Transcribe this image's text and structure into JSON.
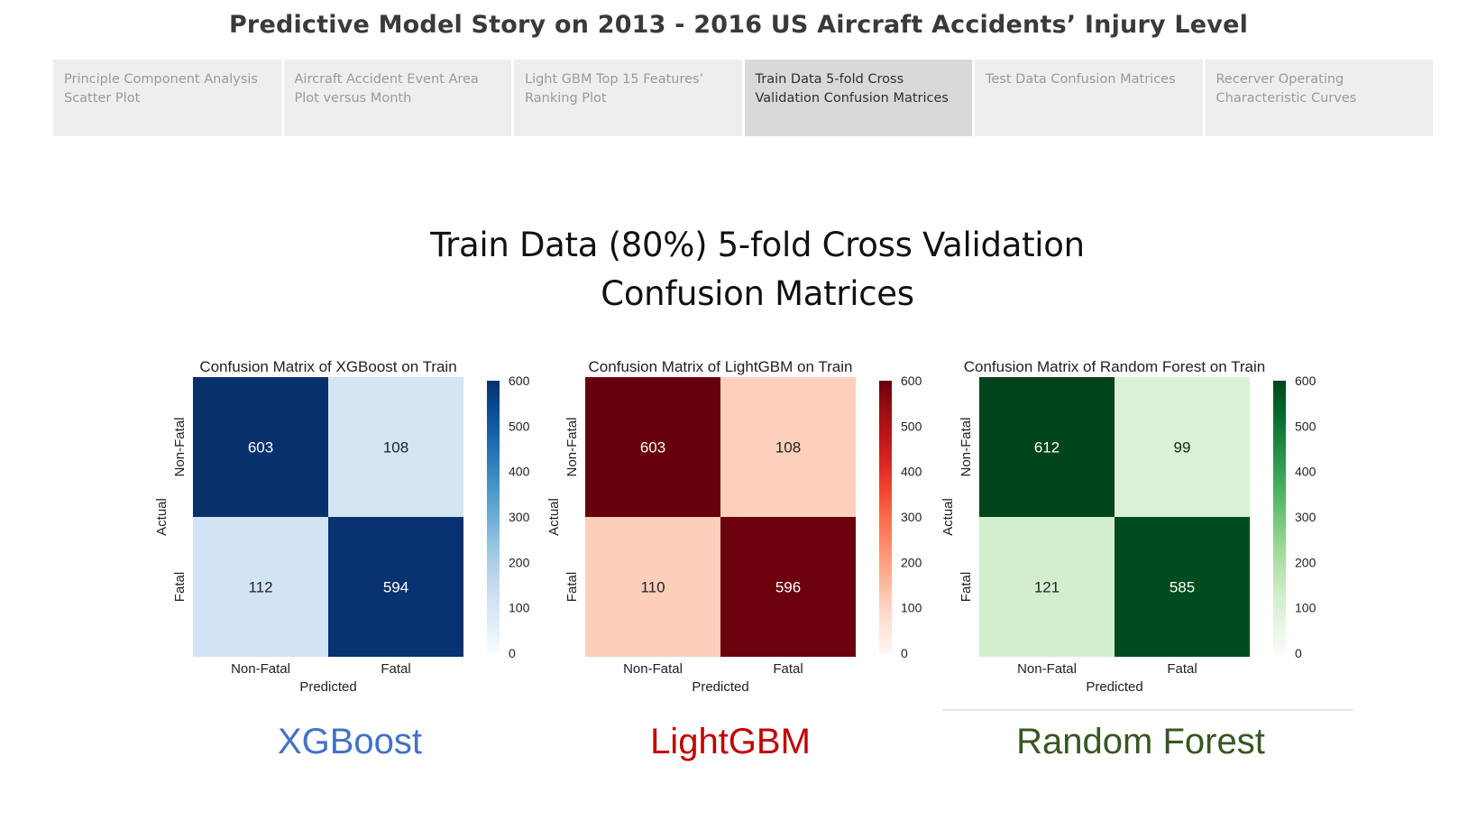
{
  "story": {
    "title": "Predictive Model Story on 2013 - 2016 US Aircraft Accidents’  Injury Level",
    "tabs": [
      {
        "label": "Principle Component Analysis Scatter Plot",
        "active": false
      },
      {
        "label": "Aircraft Accident Event Area Plot versus Month",
        "active": false
      },
      {
        "label": "Light GBM Top 15 Features’ Ranking Plot",
        "active": false
      },
      {
        "label": "Train Data 5-fold Cross Validation Confusion Matrices",
        "active": true
      },
      {
        "label": "Test Data Confusion Matrices",
        "active": false
      },
      {
        "label": "Recerver Operating Characteristic Curves",
        "active": false
      }
    ]
  },
  "heading": {
    "line1": "Train Data (80%) 5-fold Cross Validation",
    "line2": "Confusion Matrices"
  },
  "captions": {
    "xgboost": "XGBoost",
    "lightgbm": "LightGBM",
    "random_forest": "Random Forest"
  },
  "colors": {
    "xgboost_caption": "#4472c4",
    "lightgbm_caption": "#c00000",
    "random_forest_caption": "#375623"
  },
  "chart_data": [
    {
      "type": "heatmap",
      "title": "Confusion Matrix of XGBoost on Train",
      "xlabel": "Predicted",
      "ylabel": "Actual",
      "x_categories": [
        "Non-Fatal",
        "Fatal"
      ],
      "y_categories": [
        "Non-Fatal",
        "Fatal"
      ],
      "values": [
        [
          603,
          108
        ],
        [
          112,
          594
        ]
      ],
      "colormap": "Blues",
      "colorbar": {
        "min": 0,
        "max": 600,
        "ticks": [
          0,
          100,
          200,
          300,
          400,
          500,
          600
        ]
      }
    },
    {
      "type": "heatmap",
      "title": "Confusion Matrix of LightGBM on Train",
      "xlabel": "Predicted",
      "ylabel": "Actual",
      "x_categories": [
        "Non-Fatal",
        "Fatal"
      ],
      "y_categories": [
        "Non-Fatal",
        "Fatal"
      ],
      "values": [
        [
          603,
          108
        ],
        [
          110,
          596
        ]
      ],
      "colormap": "Reds",
      "colorbar": {
        "min": 0,
        "max": 600,
        "ticks": [
          0,
          100,
          200,
          300,
          400,
          500,
          600
        ]
      }
    },
    {
      "type": "heatmap",
      "title": "Confusion Matrix of Random Forest on Train",
      "xlabel": "Predicted",
      "ylabel": "Actual",
      "x_categories": [
        "Non-Fatal",
        "Fatal"
      ],
      "y_categories": [
        "Non-Fatal",
        "Fatal"
      ],
      "values": [
        [
          612,
          99
        ],
        [
          121,
          585
        ]
      ],
      "colormap": "Greens",
      "colorbar": {
        "min": 0,
        "max": 600,
        "ticks": [
          0,
          100,
          200,
          300,
          400,
          500,
          600
        ]
      }
    }
  ]
}
